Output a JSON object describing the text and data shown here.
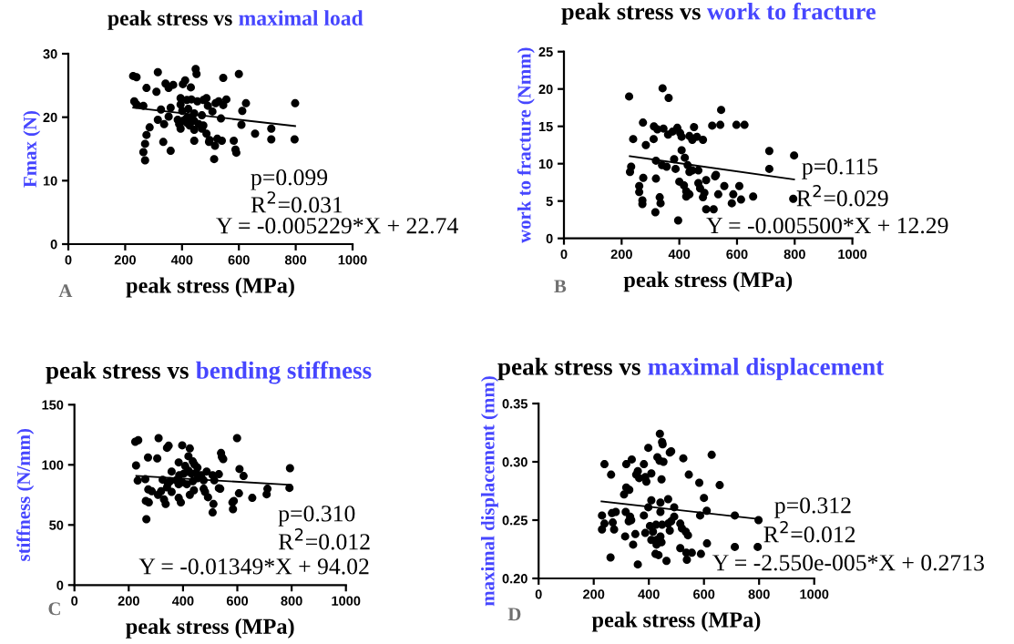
{
  "chart_data": [
    {
      "type": "scatter",
      "title": "peak stress vs",
      "subtitle": "maximal load",
      "xlabel": "peak stress (MPa)",
      "ylabel": "Fmax (N)",
      "xlim": [
        0,
        1000
      ],
      "xticks": [
        0,
        200,
        400,
        600,
        800,
        1000
      ],
      "ylim": [
        0,
        30
      ],
      "yticks": [
        0,
        10,
        20,
        30
      ],
      "grid": false,
      "legend": false,
      "annotations": [
        "p=0.099",
        "R$^{2}$=0.031",
        "Y = -0.005229*X + 22.74",
        "A"
      ],
      "series": [
        {
          "color": "#000000",
          "marker": "circle",
          "x": [
            228,
            240,
            315,
            448,
            451,
            545,
            600,
            275,
            310,
            342,
            353,
            369,
            403,
            411,
            431,
            232,
            240,
            264,
            326,
            360,
            395,
            395,
            417,
            433,
            454,
            475,
            486,
            491,
            518,
            529,
            556,
            545,
            625,
            612,
            798,
            401,
            422,
            443,
            470,
            507,
            537,
            609,
            315,
            337,
            353,
            385,
            390,
            406,
            417,
            427,
            443,
            459,
            475,
            286,
            275,
            270,
            264,
            270,
            334,
            360,
            395,
            443,
            443,
            470,
            486,
            497,
            524,
            540,
            516,
            513,
            582,
            588,
            591,
            657,
            714,
            714,
            796,
            495,
            417,
            433
          ],
          "values": [
            26.5,
            26.3,
            27.1,
            27.6,
            26.8,
            26.2,
            26.8,
            24.6,
            24.0,
            25.3,
            24.6,
            25.1,
            25.2,
            25.8,
            24.7,
            22.5,
            22.0,
            21.8,
            21.2,
            21.5,
            23.0,
            22.0,
            22.7,
            22.8,
            22.5,
            22.7,
            23.0,
            21.8,
            22.2,
            22.5,
            22.8,
            21.9,
            22.2,
            21.0,
            22.2,
            21.0,
            21.3,
            20.6,
            20.3,
            20.9,
            19.8,
            18.8,
            19.6,
            18.9,
            20.1,
            19.6,
            18.9,
            19.5,
            19.1,
            18.7,
            19.4,
            18.9,
            18.7,
            18.4,
            17.2,
            15.8,
            14.5,
            13.2,
            16.1,
            14.7,
            18.2,
            18.0,
            16.3,
            18.2,
            17.4,
            16.4,
            16.6,
            16.3,
            15.5,
            13.4,
            16.3,
            14.9,
            14.4,
            17.4,
            18.2,
            16.5,
            16.5,
            16.1,
            19.9,
            19.9
          ]
        },
        {
          "type": "line",
          "color": "#000000",
          "marker": "none",
          "line_style": "solid",
          "x": [
            228,
            798
          ],
          "values": [
            21.5,
            18.6
          ]
        }
      ]
    },
    {
      "type": "scatter",
      "title": "peak stress vs",
      "subtitle": "work to fracture",
      "xlabel": "peak stress (MPa)",
      "ylabel": "work to fracture (Nmm)",
      "xlim": [
        0,
        1000
      ],
      "xticks": [
        0,
        200,
        400,
        600,
        800,
        1000
      ],
      "ylim": [
        0,
        25
      ],
      "yticks": [
        0,
        5,
        10,
        15,
        20,
        25
      ],
      "grid": false,
      "legend": false,
      "annotations": [
        "p=0.115",
        "R$^{2}$=0.029",
        "Y = -0.005500*X + 12.29",
        "B"
      ],
      "series": [
        {
          "color": "#000000",
          "marker": "circle",
          "x": [
            226,
            342,
            363,
            545,
            274,
            312,
            324,
            345,
            361,
            377,
            393,
            403,
            408,
            451,
            435,
            445,
            461,
            482,
            240,
            284,
            311,
            514,
            542,
            598,
            626,
            712,
            798,
            712,
            408,
            419,
            382,
            319,
            340,
            356,
            387,
            429,
            435,
            445,
            466,
            233,
            229,
            275,
            319,
            527,
            524,
            400,
            416,
            466,
            493,
            472,
            556,
            608,
            261,
            261,
            272,
            272,
            332,
            335,
            317,
            396,
            424,
            435,
            424,
            487,
            482,
            535,
            587,
            614,
            656,
            582,
            493,
            519,
            795
          ],
          "values": [
            19.0,
            20.1,
            18.8,
            17.2,
            15.5,
            15.0,
            14.6,
            14.7,
            13.9,
            14.3,
            14.8,
            14.1,
            13.6,
            14.9,
            13.7,
            13.2,
            13.6,
            13.2,
            13.3,
            12.5,
            13.3,
            15.1,
            15.2,
            15.2,
            15.2,
            11.7,
            11.1,
            9.3,
            11.8,
            10.8,
            10.6,
            10.4,
            9.8,
            9.6,
            9.3,
            9.8,
            8.9,
            9.1,
            9.1,
            9.6,
            8.9,
            8.1,
            8.0,
            8.5,
            8.3,
            7.6,
            7.1,
            7.4,
            7.8,
            6.7,
            7.0,
            7.0,
            7.0,
            6.2,
            5.1,
            4.6,
            5.5,
            4.7,
            3.5,
            2.4,
            6.3,
            5.9,
            5.6,
            6.1,
            5.5,
            5.9,
            5.9,
            5.2,
            5.6,
            4.7,
            3.9,
            3.9,
            5.3
          ]
        },
        {
          "type": "line",
          "color": "#000000",
          "marker": "none",
          "line_style": "solid",
          "x": [
            228,
            798
          ],
          "values": [
            11.0,
            7.9
          ]
        }
      ]
    },
    {
      "type": "scatter",
      "title": "peak stress vs",
      "subtitle": "bending stiffness",
      "xlabel": "peak stress (MPa)",
      "ylabel": "stiffness (N/mm)",
      "xlim": [
        0,
        1000
      ],
      "xticks": [
        0,
        200,
        400,
        600,
        800,
        1000
      ],
      "ylim": [
        0,
        150
      ],
      "yticks": [
        0,
        50,
        100,
        150
      ],
      "grid": false,
      "legend": false,
      "annotations": [
        "p=0.310",
        "R$^{2}$=0.012",
        "Y = -0.01349*X + 94.02",
        "C"
      ],
      "series": [
        {
          "color": "#000000",
          "marker": "circle",
          "x": [
            224,
            235,
            310,
            599,
            341,
            347,
            397,
            425,
            540,
            543,
            548,
            271,
            305,
            227,
            420,
            384,
            408,
            436,
            442,
            453,
            233,
            261,
            325,
            358,
            386,
            403,
            420,
            431,
            448,
            467,
            487,
            509,
            532,
            515,
            608,
            623,
            794,
            375,
            397,
            414,
            436,
            453,
            476,
            352,
            341,
            358,
            319,
            272,
            285,
            308,
            274,
            263,
            265,
            330,
            336,
            384,
            392,
            425,
            440,
            476,
            481,
            492,
            512,
            509,
            532,
            537,
            582,
            587,
            584,
            606,
            655,
            711,
            708,
            792,
            384,
            344
          ],
          "values": [
            119.2,
            120.5,
            122.2,
            122.2,
            114.1,
            115.9,
            116.2,
            113.6,
            109.8,
            106.6,
            104.8,
            106.1,
            105.3,
            99.5,
            107.1,
            102,
            99,
            102.8,
            100.3,
            97.7,
            86.9,
            88.1,
            87.6,
            94.4,
            91.4,
            92.7,
            95.2,
            92.7,
            93.2,
            91.4,
            94.4,
            91.4,
            92.2,
            87.1,
            96.5,
            90.7,
            97.2,
            87.1,
            85.6,
            83.8,
            86.4,
            88.9,
            87.1,
            86.4,
            81.3,
            77.5,
            78.0,
            79.5,
            78.0,
            75,
            68.7,
            70,
            54.8,
            71.2,
            67.4,
            72.5,
            68.7,
            75,
            78.8,
            80.1,
            77.5,
            73,
            67.4,
            60.4,
            80.6,
            80.1,
            68.7,
            70,
            63.1,
            76.3,
            72.5,
            80.1,
            75.5,
            80.8,
            83.8,
            84.6
          ]
        },
        {
          "type": "line",
          "color": "#000000",
          "marker": "none",
          "line_style": "solid",
          "x": [
            228,
            798
          ],
          "values": [
            90.9,
            83.3
          ]
        }
      ]
    },
    {
      "type": "scatter",
      "title": "peak stress vs",
      "subtitle": "maximal displacement",
      "xlabel": "peak stress (MPa)",
      "ylabel": "maximal displacement (mm)",
      "xlim": [
        0,
        1000
      ],
      "xticks": [
        0,
        200,
        400,
        600,
        800,
        1000
      ],
      "ylim": [
        0.2,
        0.35
      ],
      "yticks": [
        {
          "value": 0.2,
          "label": "0.20"
        },
        0.25,
        {
          "value": 0.3,
          "label": "0.30"
        },
        0.35
      ],
      "grid": false,
      "legend": false,
      "annotations": [
        "p=0.312",
        "R$^{2}$=0.012",
        "Y = -2.550e-005*X + 0.2713",
        "D"
      ],
      "series": [
        {
          "color": "#000000",
          "marker": "circle",
          "x": [
            440,
            448,
            450,
            476,
            481,
            398,
            239,
            263,
            318,
            338,
            382,
            360,
            354,
            365,
            387,
            409,
            391,
            431,
            439,
            453,
            446,
            525,
            545,
            583,
            628,
            657,
            318,
            329,
            310,
            600,
            610,
            586,
            409,
            442,
            470,
            398,
            442,
            492,
            492,
            230,
            266,
            280,
            316,
            332,
            382,
            239,
            230,
            274,
            269,
            327,
            336,
            404,
            426,
            448,
            470,
            481,
            476,
            514,
            520,
            415,
            387,
            534,
            542,
            314,
            351,
            343,
            409,
            428,
            442,
            446,
            428,
            611,
            514,
            536,
            556,
            589,
            424,
            435,
            464,
            538,
            261,
            360,
            712,
            798,
            712,
            795
          ],
          "values": [
            0.324,
            0.317,
            0.315,
            0.308,
            0.309,
            0.312,
            0.298,
            0.289,
            0.298,
            0.302,
            0.298,
            0.292,
            0.289,
            0.286,
            0.287,
            0.29,
            0.283,
            0.304,
            0.301,
            0.3,
            0.285,
            0.303,
            0.289,
            0.282,
            0.306,
            0.28,
            0.278,
            0.276,
            0.272,
            0.269,
            0.258,
            0.254,
            0.267,
            0.265,
            0.268,
            0.261,
            0.257,
            0.261,
            0.253,
            0.254,
            0.256,
            0.257,
            0.257,
            0.253,
            0.254,
            0.247,
            0.242,
            0.242,
            0.248,
            0.249,
            0.25,
            0.245,
            0.246,
            0.246,
            0.247,
            0.249,
            0.241,
            0.247,
            0.243,
            0.24,
            0.239,
            0.24,
            0.237,
            0.236,
            0.238,
            0.229,
            0.233,
            0.233,
            0.236,
            0.231,
            0.229,
            0.23,
            0.226,
            0.222,
            0.222,
            0.221,
            0.221,
            0.22,
            0.215,
            0.216,
            0.218,
            0.212,
            0.254,
            0.25,
            0.227,
            0.227
          ]
        },
        {
          "type": "line",
          "color": "#000000",
          "marker": "none",
          "line_style": "solid",
          "x": [
            228,
            798
          ],
          "values": [
            0.266,
            0.251
          ]
        }
      ]
    }
  ]
}
